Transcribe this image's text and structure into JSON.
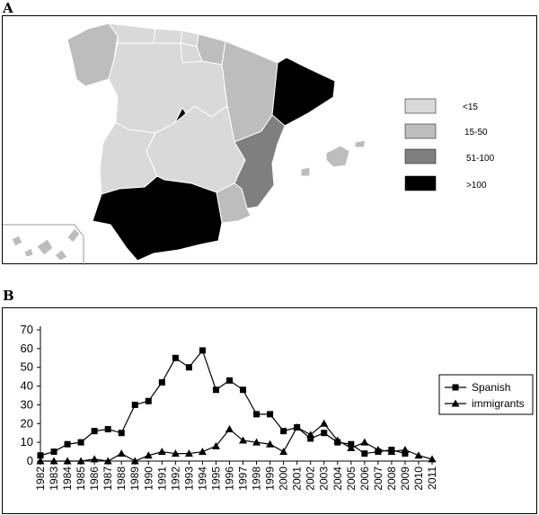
{
  "panels": {
    "a_label": "A",
    "b_label": "B"
  },
  "map": {
    "colors": {
      "lt15": "#d9d9d9",
      "15-50": "#bdbdbd",
      "51-100": "#7f7f7f",
      "gt100": "#000000"
    },
    "legend": [
      {
        "label": "<15",
        "color": "#d9d9d9"
      },
      {
        "label": "15-50",
        "color": "#bdbdbd"
      },
      {
        "label": "51-100",
        "color": "#7f7f7f"
      },
      {
        "label": ">100",
        "color": "#000000"
      }
    ]
  },
  "chart_data": {
    "type": "line",
    "title": "",
    "xlabel": "",
    "ylabel": "",
    "ylim": [
      0,
      70
    ],
    "yticks": [
      0,
      10,
      20,
      30,
      40,
      50,
      60,
      70
    ],
    "x": [
      "1982",
      "1983",
      "1984",
      "1985",
      "1986",
      "1987",
      "1988",
      "1989",
      "1990",
      "1991",
      "1992",
      "1993",
      "1994",
      "1995",
      "1996",
      "1997",
      "1998",
      "1999",
      "2000",
      "2001",
      "2002",
      "2003",
      "2004",
      "2005",
      "2006",
      "2007",
      "2008",
      "2009",
      "2010",
      "2011"
    ],
    "series": [
      {
        "name": "Spanish",
        "marker": "square",
        "x": [
          "1982",
          "1983",
          "1984",
          "1985",
          "1986",
          "1987",
          "1988",
          "1989",
          "1990",
          "1991",
          "1992",
          "1993",
          "1994",
          "1995",
          "1996",
          "1997",
          "1998",
          "1999",
          "2000",
          "2001",
          "2002",
          "2003",
          "2004",
          "2005",
          "2006",
          "2007",
          "2008",
          "2009"
        ],
        "values": [
          3,
          5,
          9,
          10,
          16,
          17,
          15,
          30,
          32,
          42,
          55,
          50,
          59,
          38,
          43,
          38,
          25,
          25,
          16,
          18,
          12,
          15,
          10,
          9,
          4,
          5,
          6,
          4
        ]
      },
      {
        "name": "immigrants",
        "marker": "triangle",
        "x": [
          "1982",
          "1983",
          "1984",
          "1985",
          "1986",
          "1987",
          "1988",
          "1989",
          "1990",
          "1991",
          "1992",
          "1993",
          "1994",
          "1995",
          "1996",
          "1997",
          "1998",
          "1999",
          "2000",
          "2001",
          "2002",
          "2003",
          "2004",
          "2005",
          "2006",
          "2007",
          "2008",
          "2009",
          "2010",
          "2011"
        ],
        "values": [
          0,
          0,
          0,
          0,
          1,
          0,
          4,
          0,
          3,
          5,
          4,
          4,
          5,
          8,
          17,
          11,
          10,
          9,
          5,
          18,
          14,
          20,
          11,
          7,
          10,
          6,
          5,
          6,
          3,
          1
        ]
      }
    ],
    "legend": {
      "placement": "right",
      "entries": [
        "Spanish",
        "immigrants"
      ]
    }
  }
}
